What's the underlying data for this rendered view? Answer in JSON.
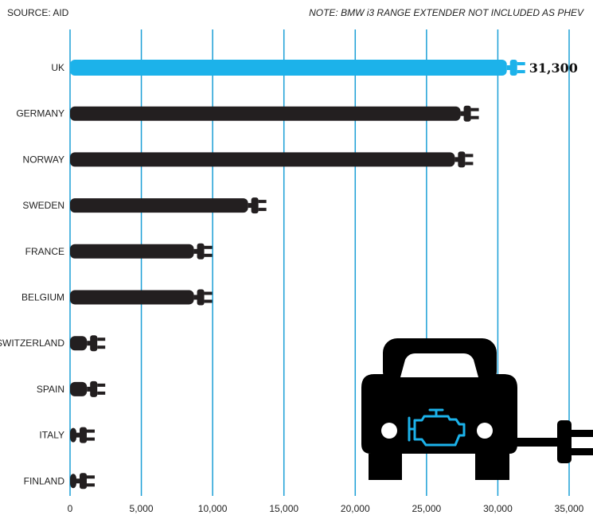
{
  "header": {
    "source": "SOURCE: AID",
    "note": "NOTE: BMW i3 RANGE EXTENDER NOT INCLUDED AS PHEV"
  },
  "colors": {
    "highlight": "#1cb2ea",
    "bar": "#231f20",
    "grid": "#1b9fd6"
  },
  "icons": [
    "plug-icon",
    "car-icon",
    "engine-warning-icon"
  ],
  "chart_data": {
    "type": "bar",
    "orientation": "horizontal",
    "title": "",
    "xlabel": "",
    "ylabel": "",
    "categories": [
      "UK",
      "GERMANY",
      "NORWAY",
      "SWEDEN",
      "FRANCE",
      "BELGIUM",
      "SWITZERLAND",
      "SPAIN",
      "ITALY",
      "FINLAND"
    ],
    "values": [
      31300,
      28500,
      28100,
      13600,
      9800,
      9800,
      2300,
      2300,
      1300,
      1300
    ],
    "highlight_category": "UK",
    "value_labels": {
      "UK": "31,300"
    },
    "xlim": [
      0,
      35000
    ],
    "xticks": [
      0,
      5000,
      10000,
      15000,
      20000,
      25000,
      30000,
      35000
    ],
    "xtick_labels": [
      "0",
      "5,000",
      "10,000",
      "15,000",
      "20,000",
      "25,000",
      "30,000",
      "35,000"
    ],
    "grid": "vertical"
  }
}
